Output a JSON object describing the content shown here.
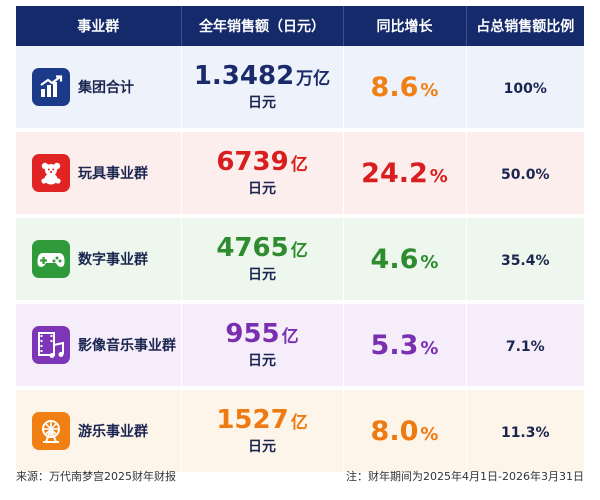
{
  "header": {
    "col_segment": "事业群",
    "col_sales": "全年销售额（日元）",
    "col_growth": "同比增长",
    "col_share": "占总销售额比例"
  },
  "rows": [
    {
      "name": "集团合计",
      "icon": "bar-chart-icon",
      "amount": "1.3482",
      "unit": "万亿",
      "currency": "日元",
      "growth": "8.6",
      "pct": "%",
      "share": "100%",
      "color": "#1b2a6b",
      "growth_color": "#f07f14",
      "icon_bg": "#1b3a8a"
    },
    {
      "name": "玩具事业群",
      "icon": "teddy-bear-icon",
      "amount": "6739",
      "unit": "亿",
      "currency": "日元",
      "growth": "24.2",
      "pct": "%",
      "share": "50.0%",
      "color": "#d81e1e",
      "growth_color": "#d81e1e",
      "icon_bg": "#e02424"
    },
    {
      "name": "数字事业群",
      "icon": "gamepad-icon",
      "amount": "4765",
      "unit": "亿",
      "currency": "日元",
      "growth": "4.6",
      "pct": "%",
      "share": "35.4%",
      "color": "#2e8b2e",
      "growth_color": "#2e8b2e",
      "icon_bg": "#2e9a3a"
    },
    {
      "name": "影像音乐事业群",
      "icon": "film-music-icon",
      "amount": "955",
      "unit": "亿",
      "currency": "日元",
      "growth": "5.3",
      "pct": "%",
      "share": "7.1%",
      "color": "#7a2fb0",
      "growth_color": "#7a2fb0",
      "icon_bg": "#7d36b8"
    },
    {
      "name": "游乐事业群",
      "icon": "ferris-wheel-icon",
      "amount": "1527",
      "unit": "亿",
      "currency": "日元",
      "growth": "8.0",
      "pct": "%",
      "share": "11.3%",
      "color": "#ee7a12",
      "growth_color": "#ee7a12",
      "icon_bg": "#f07f14"
    }
  ],
  "footer": {
    "source": "来源：万代南梦宫2025财年财报",
    "note": "注：财年期间为2025年4月1日-2026年3月31日"
  }
}
